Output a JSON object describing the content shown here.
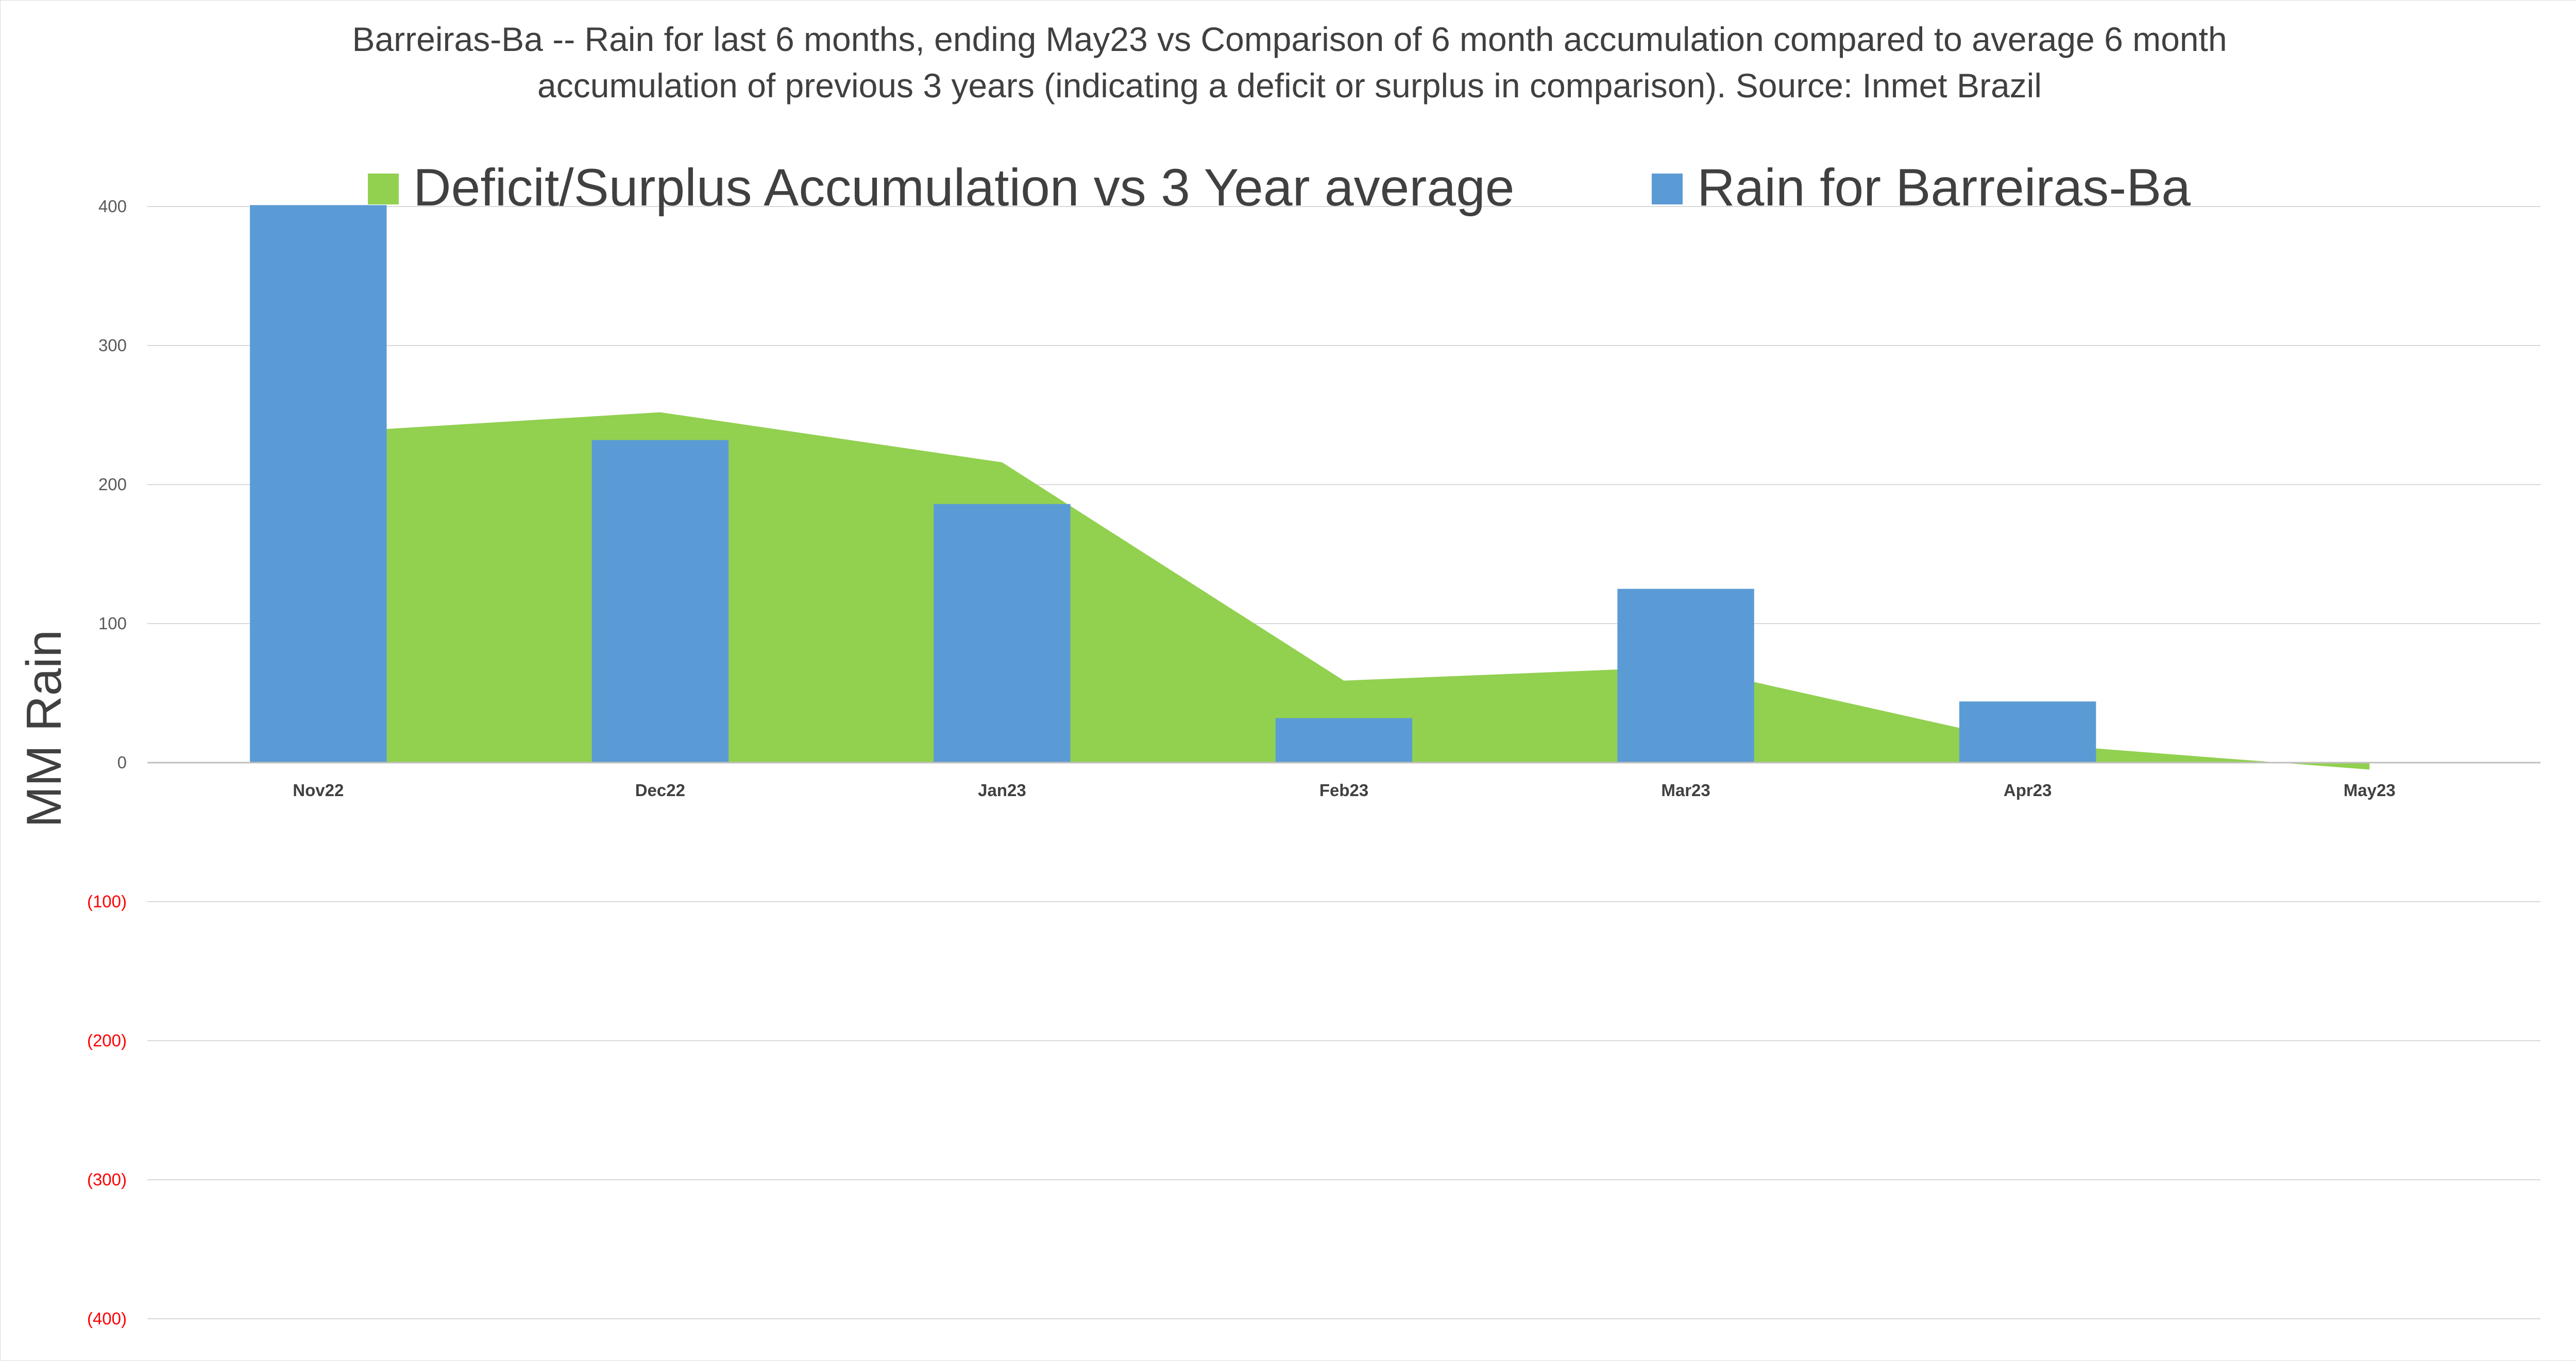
{
  "chart_data": {
    "type": "bar",
    "title_lines": [
      "Barreiras-Ba -- Rain for last 6 months, ending May23  vs Comparison of 6 month accumulation compared to average 6 month",
      "accumulation of previous 3 years  (indicating a deficit or surplus in comparison). Source: Inmet Brazil"
    ],
    "ylabel": "MM Rain",
    "xlabel": "",
    "ylim": [
      -400,
      400
    ],
    "ytick_values": [
      400,
      300,
      200,
      100,
      0,
      -100,
      -200,
      -300,
      -400
    ],
    "ytick_labels": [
      "400",
      "300",
      "200",
      "100",
      "0",
      "(100)",
      "(200)",
      "(300)",
      "(400)"
    ],
    "categories": [
      "Nov22",
      "Dec22",
      "Jan23",
      "Feb23",
      "Mar23",
      "Apr23",
      "May23"
    ],
    "series": [
      {
        "name": "Deficit/Surplus Accumulation vs 3 Year average",
        "type": "area",
        "color": "#92d050",
        "values": [
          237,
          252,
          216,
          59,
          69,
          14,
          -5
        ]
      },
      {
        "name": "Rain for Barreiras-Ba",
        "type": "bar",
        "color": "#5b9bd5",
        "values": [
          401,
          232,
          186,
          32,
          125,
          44,
          0
        ]
      }
    ],
    "legend_position": "top",
    "grid": true,
    "positive_tick_color": "#595959",
    "negative_tick_color": "#ff0000",
    "gridline_color": "#d9d9d9"
  }
}
